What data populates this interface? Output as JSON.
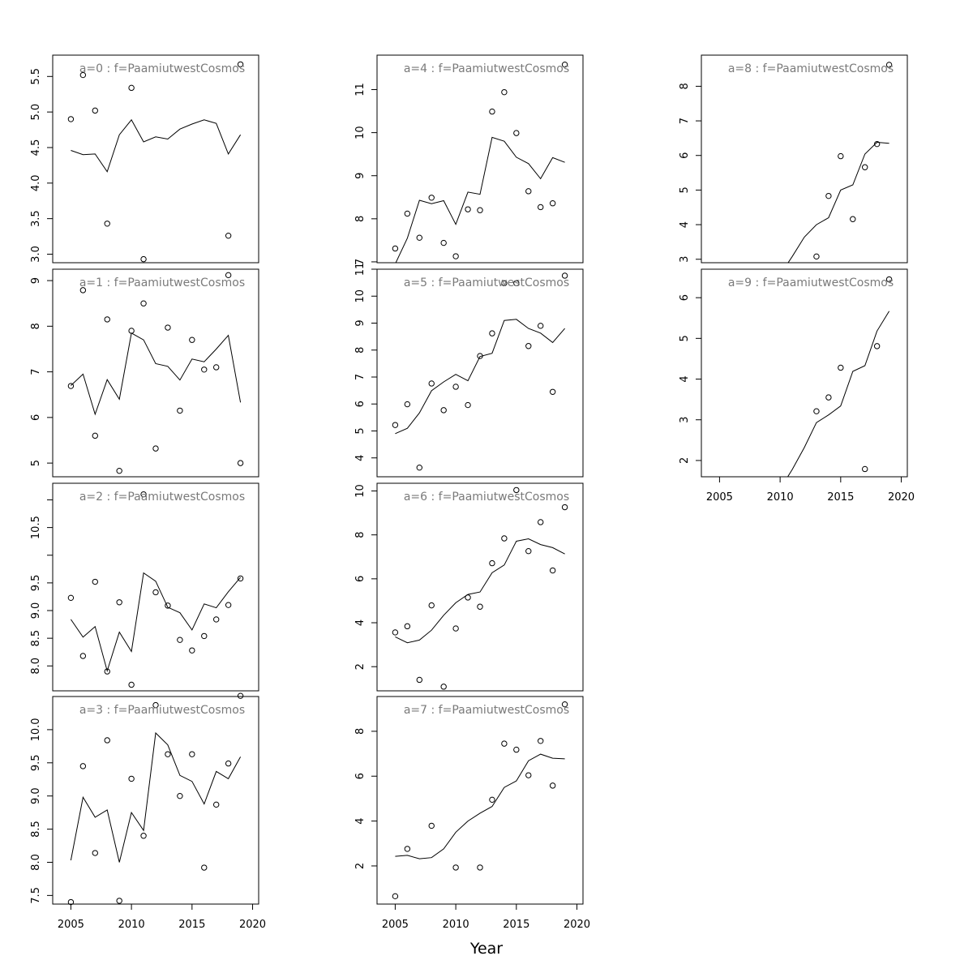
{
  "chart_data": {
    "type": "scatter",
    "xlabel": "Year",
    "years": [
      2005,
      2006,
      2007,
      2008,
      2009,
      2010,
      2011,
      2012,
      2013,
      2014,
      2015,
      2016,
      2017,
      2018,
      2019
    ],
    "xticks": [
      2005,
      2010,
      2015,
      2020
    ],
    "xlim": [
      2003.5,
      2020.5
    ],
    "panels": [
      {
        "title": "a=0  :  f=PaamiutwestCosmos",
        "ylim": [
          2.88,
          5.8
        ],
        "yticks": [
          3.0,
          3.5,
          4.0,
          4.5,
          5.0,
          5.5
        ],
        "ytick_labels": [
          "3.0",
          "3.5",
          "4.0",
          "4.5",
          "5.0",
          "5.5"
        ],
        "observed": [
          4.9,
          5.52,
          5.02,
          3.43,
          null,
          5.34,
          2.93,
          null,
          null,
          null,
          null,
          null,
          null,
          3.26,
          5.67
        ],
        "fitted": [
          4.46,
          4.4,
          4.41,
          4.16,
          4.68,
          4.89,
          4.58,
          4.65,
          4.62,
          4.76,
          4.83,
          4.89,
          4.84,
          4.41,
          4.68
        ]
      },
      {
        "title": "a=1  :  f=PaamiutwestCosmos",
        "ylim": [
          4.7,
          9.25
        ],
        "yticks": [
          5,
          6,
          7,
          8,
          9
        ],
        "ytick_labels": [
          "5",
          "6",
          "7",
          "8",
          "9"
        ],
        "observed": [
          6.69,
          8.79,
          5.6,
          8.15,
          4.83,
          7.9,
          8.5,
          5.32,
          7.97,
          6.15,
          7.7,
          7.05,
          7.1,
          9.12,
          5.0
        ],
        "fitted": [
          6.7,
          6.95,
          6.07,
          6.83,
          6.4,
          7.85,
          7.7,
          7.18,
          7.12,
          6.82,
          7.28,
          7.22,
          7.5,
          7.8,
          6.33
        ]
      },
      {
        "title": "a=2  :  f=PaamiutwestCosmos",
        "ylim": [
          7.55,
          11.3
        ],
        "yticks": [
          8.0,
          8.5,
          9.0,
          9.5,
          10.0,
          10.5,
          11.0
        ],
        "ytick_labels": [
          "8.0",
          "8.5",
          "9.0",
          "9.5",
          "",
          "10.5",
          ""
        ],
        "observed": [
          9.23,
          8.18,
          9.52,
          7.9,
          9.15,
          7.66,
          11.1,
          9.33,
          9.09,
          8.47,
          8.28,
          8.54,
          8.84,
          9.1,
          9.58
        ],
        "fitted": [
          8.84,
          8.52,
          8.71,
          7.91,
          8.61,
          8.26,
          9.68,
          9.53,
          9.06,
          8.96,
          8.65,
          9.12,
          9.05,
          9.34,
          9.6
        ]
      },
      {
        "title": "a=3  :  f=PaamiutwestCosmos",
        "ylim": [
          7.37,
          10.5
        ],
        "yticks": [
          7.5,
          8.0,
          8.5,
          9.0,
          9.5,
          10.0
        ],
        "ytick_labels": [
          "7.5",
          "8.0",
          "8.5",
          "9.0",
          "9.5",
          "10.0"
        ],
        "observed": [
          7.4,
          9.45,
          8.14,
          9.84,
          7.42,
          9.26,
          8.4,
          10.37,
          9.63,
          9.0,
          9.63,
          7.92,
          8.87,
          9.49,
          10.51
        ],
        "fitted": [
          8.03,
          8.98,
          8.68,
          8.79,
          8.0,
          8.75,
          8.48,
          9.95,
          9.77,
          9.31,
          9.22,
          8.88,
          9.37,
          9.26,
          9.59
        ]
      },
      {
        "title": "a=4  :  f=PaamiutwestCosmos",
        "ylim": [
          6.98,
          11.8
        ],
        "yticks": [
          7,
          8,
          9,
          10,
          11
        ],
        "ytick_labels": [
          "7",
          "8",
          "9",
          "10",
          "11"
        ],
        "observed": [
          7.31,
          8.12,
          7.56,
          8.49,
          7.44,
          7.13,
          8.22,
          8.2,
          10.49,
          10.94,
          9.99,
          8.64,
          8.27,
          8.36,
          11.58
        ],
        "fitted": [
          6.95,
          7.55,
          8.43,
          8.35,
          8.42,
          7.87,
          8.62,
          8.57,
          9.89,
          9.8,
          9.43,
          9.28,
          8.93,
          9.42,
          9.31
        ]
      },
      {
        "title": "a=5  :  f=PaamiutwestCosmos",
        "ylim": [
          3.3,
          11.0
        ],
        "yticks": [
          4,
          5,
          6,
          7,
          8,
          9,
          10,
          11
        ],
        "ytick_labels": [
          "4",
          "5",
          "6",
          "7",
          "8",
          "9",
          "10",
          "11"
        ],
        "observed": [
          5.22,
          5.99,
          3.64,
          6.76,
          5.77,
          6.64,
          5.96,
          7.78,
          8.62,
          10.48,
          10.48,
          8.15,
          8.9,
          6.45,
          10.76
        ],
        "fitted": [
          4.9,
          5.1,
          5.67,
          6.49,
          6.82,
          7.1,
          6.86,
          7.76,
          7.88,
          9.1,
          9.14,
          8.8,
          8.63,
          8.28,
          8.8
        ]
      },
      {
        "title": "a=6  :  f=PaamiutwestCosmos",
        "ylim": [
          0.9,
          10.35
        ],
        "yticks": [
          2,
          4,
          6,
          8,
          10
        ],
        "ytick_labels": [
          "2",
          "4",
          "6",
          "8",
          "10"
        ],
        "observed": [
          3.56,
          3.84,
          1.4,
          4.79,
          1.09,
          3.74,
          5.15,
          4.73,
          6.71,
          7.84,
          10.04,
          7.26,
          8.58,
          6.38,
          9.26
        ],
        "fitted": [
          3.36,
          3.09,
          3.21,
          3.66,
          4.34,
          4.91,
          5.29,
          5.4,
          6.28,
          6.63,
          7.71,
          7.82,
          7.56,
          7.42,
          7.13
        ]
      },
      {
        "title": "a=7  :  f=PaamiutwestCosmos",
        "ylim": [
          0.3,
          9.55
        ],
        "yticks": [
          2,
          4,
          6,
          8
        ],
        "ytick_labels": [
          "2",
          "4",
          "6",
          "8"
        ],
        "observed": [
          0.65,
          2.76,
          null,
          3.79,
          null,
          1.93,
          null,
          1.93,
          4.95,
          7.45,
          7.18,
          6.04,
          7.57,
          5.58,
          9.2
        ],
        "fitted": [
          2.43,
          2.47,
          2.32,
          2.37,
          2.76,
          3.5,
          4.0,
          4.35,
          4.65,
          5.5,
          5.79,
          6.69,
          6.98,
          6.8,
          6.77
        ]
      },
      {
        "title": "a=8  :  f=PaamiutwestCosmos",
        "ylim": [
          2.9,
          8.9
        ],
        "yticks": [
          3,
          4,
          5,
          6,
          7,
          8
        ],
        "ytick_labels": [
          "3",
          "4",
          "5",
          "6",
          "7",
          "8"
        ],
        "observed": [
          null,
          null,
          null,
          null,
          null,
          null,
          null,
          null,
          3.08,
          4.83,
          5.98,
          4.16,
          5.66,
          6.33,
          8.62
        ],
        "fitted": [
          null,
          null,
          null,
          null,
          null,
          2.55,
          3.08,
          3.64,
          4.0,
          4.2,
          5.0,
          5.15,
          6.04,
          6.38,
          6.35
        ]
      },
      {
        "title": "a=9  :  f=PaamiutwestCosmos",
        "ylim": [
          1.6,
          6.7
        ],
        "yticks": [
          2,
          3,
          4,
          5,
          6
        ],
        "ytick_labels": [
          "2",
          "3",
          "4",
          "5",
          "6"
        ],
        "observed": [
          null,
          null,
          null,
          null,
          null,
          null,
          null,
          null,
          3.21,
          3.55,
          4.28,
          null,
          1.79,
          4.81,
          6.45
        ],
        "fitted": [
          null,
          null,
          null,
          null,
          null,
          1.3,
          1.78,
          2.32,
          2.93,
          3.12,
          3.34,
          4.19,
          4.33,
          5.18,
          5.67
        ]
      }
    ]
  }
}
